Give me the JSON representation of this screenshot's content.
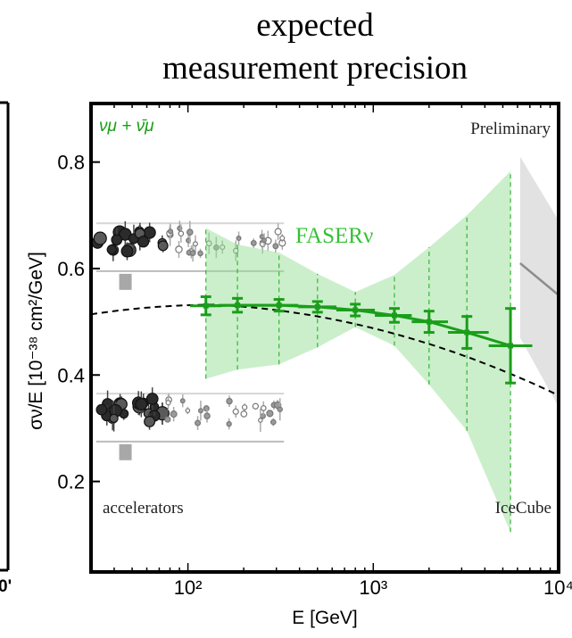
{
  "title_lines": [
    "expected",
    "measurement precision"
  ],
  "chart_data": {
    "type": "scatter",
    "title": "expected measurement precision",
    "xlabel": "E [GeV]",
    "ylabel": "σν/E [10⁻³⁸ cm²/GeV]",
    "xscale": "log",
    "xlim": [
      30,
      10000
    ],
    "ylim": [
      0.03,
      0.91
    ],
    "x_ticks": [
      100,
      1000,
      10000
    ],
    "x_tick_labels": [
      "10²",
      "10³",
      "10⁴"
    ],
    "y_ticks": [
      0.2,
      0.4,
      0.6,
      0.8
    ],
    "y_tick_labels": [
      "0.2",
      "0.4",
      "0.6",
      "0.8"
    ],
    "grid": false,
    "legend": "top-left",
    "series": [
      {
        "name": "νμ + ν̄μ",
        "color": "#1a9e1a",
        "points": [
          {
            "x": 125,
            "y": 0.53,
            "err": 0.017,
            "band": [
              0.393,
              0.676
            ]
          },
          {
            "x": 185,
            "y": 0.531,
            "err": 0.013,
            "band": [
              0.41,
              0.645
            ]
          },
          {
            "x": 310,
            "y": 0.531,
            "err": 0.011,
            "band": [
              0.42,
              0.63
            ]
          },
          {
            "x": 500,
            "y": 0.528,
            "err": 0.01,
            "band": [
              0.452,
              0.59
            ]
          },
          {
            "x": 800,
            "y": 0.522,
            "err": 0.011,
            "band": [
              0.49,
              0.556
            ]
          },
          {
            "x": 1300,
            "y": 0.512,
            "err": 0.013,
            "band": [
              0.455,
              0.588
            ]
          },
          {
            "x": 2000,
            "y": 0.5,
            "err": 0.02,
            "band": [
              0.382,
              0.64
            ]
          },
          {
            "x": 3200,
            "y": 0.48,
            "err": 0.03,
            "band": [
              0.295,
              0.7
            ]
          },
          {
            "x": 5500,
            "y": 0.455,
            "err": 0.07,
            "band": [
              0.105,
              0.783
            ]
          }
        ]
      }
    ],
    "annotations": {
      "series_label": "νμ + ν̄μ",
      "preliminary": "Preliminary",
      "faser": "FASERν",
      "accelerators": "accelerators",
      "icecube": "IceCube",
      "edge_tick_label": "0'"
    }
  }
}
